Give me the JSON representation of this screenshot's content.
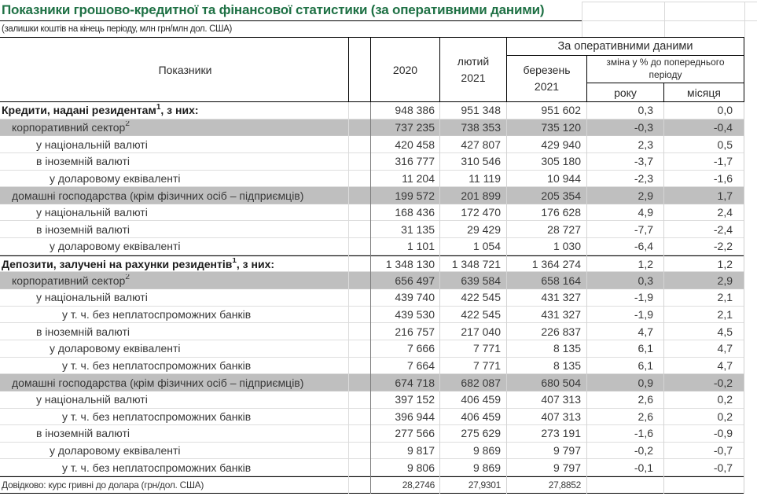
{
  "title": "Показники грошово-кредитної та фінансової статистики (за оперативними даними)",
  "subtitle": "(залишки коштів на кінець періоду, млн грн/млн дол. США)",
  "colors": {
    "title_green": "#1f7145",
    "shaded_row": "#bfbfbf",
    "border_dark": "#000000",
    "gridline_faint": "#d9d9d9",
    "text": "#383838"
  },
  "header": {
    "indicators": "Показники",
    "col_2020": "2020",
    "col_feb": "лютий\n2021",
    "operational": "За оперативними даними",
    "col_mar": "березень\n2021",
    "change": "зміна у % до попереднього періоду",
    "year": "року",
    "month": "місяця"
  },
  "table": {
    "rows": [
      {
        "label": "Кредити, надані резидентам",
        "sup": "1",
        "suffix": ", з них:",
        "indent": 0,
        "bold": true,
        "shaded": false,
        "border_top": false,
        "small": false,
        "values": [
          "948 386",
          "951 348",
          "951 602",
          "0,3",
          "0,0"
        ]
      },
      {
        "label": "корпоративний сектор",
        "sup": "2",
        "suffix": "",
        "indent": 1,
        "bold": false,
        "shaded": true,
        "border_top": false,
        "small": false,
        "values": [
          "737 235",
          "738 353",
          "735 120",
          "-0,3",
          "-0,4"
        ]
      },
      {
        "label": "у національній валюті",
        "sup": "",
        "suffix": "",
        "indent": 2,
        "bold": false,
        "shaded": false,
        "border_top": false,
        "small": false,
        "values": [
          "420 458",
          "427 807",
          "429 940",
          "2,3",
          "0,5"
        ]
      },
      {
        "label": "в іноземній валюті",
        "sup": "",
        "suffix": "",
        "indent": 2,
        "bold": false,
        "shaded": false,
        "border_top": false,
        "small": false,
        "values": [
          "316 777",
          "310 546",
          "305 180",
          "-3,7",
          "-1,7"
        ]
      },
      {
        "label": "у доларовому еквіваленті",
        "sup": "",
        "suffix": "",
        "indent": 3,
        "bold": false,
        "shaded": false,
        "border_top": false,
        "small": false,
        "values": [
          "11 204",
          "11 119",
          "10 944",
          "-2,3",
          "-1,6"
        ]
      },
      {
        "label": "домашні господарства (крім фізичних осіб – підприємців)",
        "sup": "",
        "suffix": "",
        "indent": 1,
        "bold": false,
        "shaded": true,
        "border_top": false,
        "small": false,
        "values": [
          "199 572",
          "201 899",
          "205 354",
          "2,9",
          "1,7"
        ]
      },
      {
        "label": "у національній валюті",
        "sup": "",
        "suffix": "",
        "indent": 2,
        "bold": false,
        "shaded": false,
        "border_top": false,
        "small": false,
        "values": [
          "168 436",
          "172 470",
          "176 628",
          "4,9",
          "2,4"
        ]
      },
      {
        "label": "в іноземній валюті",
        "sup": "",
        "suffix": "",
        "indent": 2,
        "bold": false,
        "shaded": false,
        "border_top": false,
        "small": false,
        "values": [
          "31 135",
          "29 429",
          "28 727",
          "-7,7",
          "-2,4"
        ]
      },
      {
        "label": "у доларовому еквіваленті",
        "sup": "",
        "suffix": "",
        "indent": 3,
        "bold": false,
        "shaded": false,
        "border_top": false,
        "small": false,
        "values": [
          "1 101",
          "1 054",
          "1 030",
          "-6,4",
          "-2,2"
        ]
      },
      {
        "label": "Депозити, залучені на рахунки резидентів",
        "sup": "1",
        "suffix": ", з них:",
        "indent": 0,
        "bold": true,
        "shaded": false,
        "border_top": true,
        "small": false,
        "values": [
          "1 348 130",
          "1 348 721",
          "1 364 274",
          "1,2",
          "1,2"
        ]
      },
      {
        "label": "корпоративний сектор",
        "sup": "2",
        "suffix": "",
        "indent": 1,
        "bold": false,
        "shaded": true,
        "border_top": false,
        "small": false,
        "values": [
          "656 497",
          "639 584",
          "658 164",
          "0,3",
          "2,9"
        ]
      },
      {
        "label": "у національній валюті",
        "sup": "",
        "suffix": "",
        "indent": 2,
        "bold": false,
        "shaded": false,
        "border_top": false,
        "small": false,
        "values": [
          "439 740",
          "422 545",
          "431 327",
          "-1,9",
          "2,1"
        ]
      },
      {
        "label": "у т. ч. без неплатоспроможних банків",
        "sup": "",
        "suffix": "",
        "indent": 4,
        "bold": false,
        "shaded": false,
        "border_top": false,
        "small": false,
        "values": [
          "439 530",
          "422 545",
          "431 327",
          "-1,9",
          "2,1"
        ]
      },
      {
        "label": "в іноземній валюті",
        "sup": "",
        "suffix": "",
        "indent": 2,
        "bold": false,
        "shaded": false,
        "border_top": false,
        "small": false,
        "values": [
          "216 757",
          "217 040",
          "226 837",
          "4,7",
          "4,5"
        ]
      },
      {
        "label": "у доларовому еквіваленті",
        "sup": "",
        "suffix": "",
        "indent": 3,
        "bold": false,
        "shaded": false,
        "border_top": false,
        "small": false,
        "values": [
          "7 666",
          "7 771",
          "8 135",
          "6,1",
          "4,7"
        ]
      },
      {
        "label": "у т. ч. без неплатоспроможних банків",
        "sup": "",
        "suffix": "",
        "indent": 4,
        "bold": false,
        "shaded": false,
        "border_top": false,
        "small": false,
        "values": [
          "7 664",
          "7 771",
          "8 135",
          "6,1",
          "4,7"
        ]
      },
      {
        "label": "домашні господарства (крім фізичних осіб – підприємців)",
        "sup": "",
        "suffix": "",
        "indent": 1,
        "bold": false,
        "shaded": true,
        "border_top": false,
        "small": false,
        "values": [
          "674 718",
          "682 087",
          "680 504",
          "0,9",
          "-0,2"
        ]
      },
      {
        "label": "у національній валюті",
        "sup": "",
        "suffix": "",
        "indent": 2,
        "bold": false,
        "shaded": false,
        "border_top": false,
        "small": false,
        "values": [
          "397 152",
          "406 459",
          "407 313",
          "2,6",
          "0,2"
        ]
      },
      {
        "label": "у т. ч. без неплатоспроможних банків",
        "sup": "",
        "suffix": "",
        "indent": 4,
        "bold": false,
        "shaded": false,
        "border_top": false,
        "small": false,
        "values": [
          "396 944",
          "406 459",
          "407 313",
          "2,6",
          "0,2"
        ]
      },
      {
        "label": "в іноземній валюті",
        "sup": "",
        "suffix": "",
        "indent": 2,
        "bold": false,
        "shaded": false,
        "border_top": false,
        "small": false,
        "values": [
          "277 566",
          "275 629",
          "273 191",
          "-1,6",
          "-0,9"
        ]
      },
      {
        "label": "у доларовому еквіваленті",
        "sup": "",
        "suffix": "",
        "indent": 3,
        "bold": false,
        "shaded": false,
        "border_top": false,
        "small": false,
        "values": [
          "9 817",
          "9 869",
          "9 797",
          "-0,2",
          "-0,7"
        ]
      },
      {
        "label": "у т. ч. без неплатоспроможних банків",
        "sup": "",
        "suffix": "",
        "indent": 4,
        "bold": false,
        "shaded": false,
        "border_top": false,
        "small": false,
        "values": [
          "9 806",
          "9 869",
          "9 797",
          "-0,1",
          "-0,7"
        ]
      },
      {
        "label": "Довідково: курс гривні до долара (грн/дол. США)",
        "sup": "",
        "suffix": "",
        "indent": 0,
        "bold": false,
        "shaded": false,
        "border_top": true,
        "small": true,
        "values": [
          "28,2746",
          "27,9301",
          "27,8852",
          "",
          ""
        ]
      }
    ]
  }
}
